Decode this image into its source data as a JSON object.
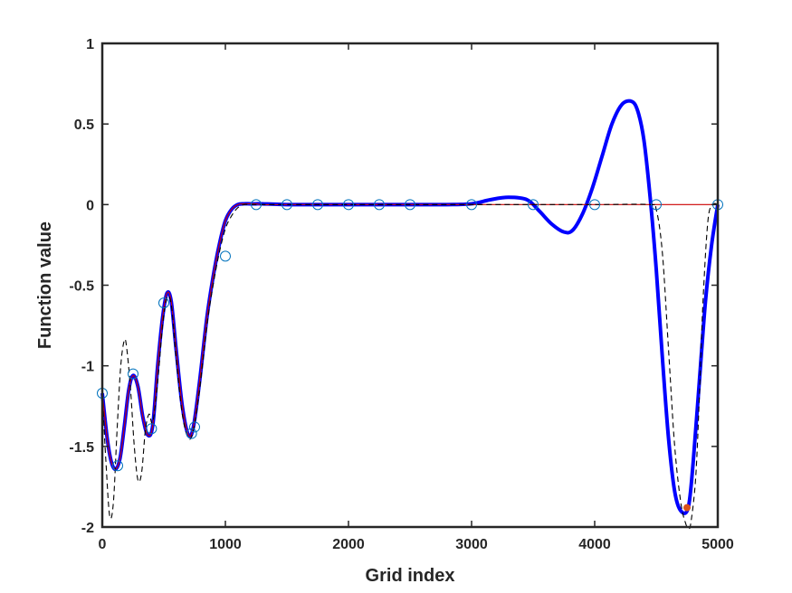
{
  "chart_data": {
    "type": "line",
    "title": "",
    "xlabel": "Grid index",
    "ylabel": "Function value",
    "xlim": [
      0,
      5000
    ],
    "ylim": [
      -2,
      1
    ],
    "xticks": [
      0,
      1000,
      2000,
      3000,
      4000,
      5000
    ],
    "xtick_labels": [
      "0",
      "1000",
      "2000",
      "3000",
      "4000",
      "5000"
    ],
    "yticks": [
      -2,
      -1.5,
      -1,
      -0.5,
      0,
      0.5,
      1
    ],
    "ytick_labels": [
      "-2",
      "-1.5",
      "-1",
      "-0.5",
      "0",
      "0.5",
      "1"
    ],
    "grid": false,
    "series": [
      {
        "style": "thick-solid",
        "color": "#0000ff",
        "x": [
          0,
          40,
          75,
          110,
          145,
          180,
          215,
          250,
          290,
          330,
          370,
          410,
          450,
          490,
          525,
          560,
          600,
          650,
          700,
          740,
          790,
          850,
          900,
          950,
          1000,
          1050,
          1100,
          1150,
          1200,
          1250,
          1300,
          1500,
          2000,
          2500,
          2800,
          3000,
          3150,
          3300,
          3450,
          3550,
          3650,
          3750,
          3820,
          3900,
          3980,
          4060,
          4140,
          4220,
          4300,
          4350,
          4400,
          4450,
          4500,
          4550,
          4600,
          4650,
          4700,
          4760,
          4800,
          4850,
          4900,
          4950,
          5000
        ],
        "y": [
          -1.17,
          -1.45,
          -1.6,
          -1.64,
          -1.57,
          -1.37,
          -1.15,
          -1.06,
          -1.13,
          -1.32,
          -1.43,
          -1.37,
          -1.0,
          -0.7,
          -0.55,
          -0.6,
          -0.9,
          -1.25,
          -1.43,
          -1.38,
          -1.1,
          -0.7,
          -0.45,
          -0.25,
          -0.1,
          -0.03,
          0.0,
          0.005,
          0.005,
          0.005,
          0.005,
          0.0,
          0.0,
          0.0,
          0.0,
          0.005,
          0.03,
          0.045,
          0.03,
          -0.04,
          -0.12,
          -0.17,
          -0.16,
          -0.06,
          0.1,
          0.3,
          0.5,
          0.62,
          0.64,
          0.58,
          0.4,
          0.05,
          -0.4,
          -0.95,
          -1.45,
          -1.78,
          -1.9,
          -1.88,
          -1.6,
          -1.1,
          -0.6,
          -0.25,
          0.0
        ]
      },
      {
        "style": "thin-solid",
        "color": "#cc0000",
        "x": [
          0,
          40,
          75,
          110,
          145,
          180,
          215,
          250,
          290,
          330,
          370,
          410,
          450,
          490,
          525,
          560,
          600,
          650,
          700,
          740,
          790,
          850,
          900,
          950,
          1000,
          1050,
          1100,
          1150,
          1200,
          1250,
          1300,
          1500,
          2000,
          2500,
          3000,
          3500,
          4000,
          4500,
          5000
        ],
        "y": [
          -1.17,
          -1.45,
          -1.6,
          -1.64,
          -1.57,
          -1.37,
          -1.15,
          -1.06,
          -1.13,
          -1.32,
          -1.43,
          -1.37,
          -1.0,
          -0.7,
          -0.55,
          -0.6,
          -0.9,
          -1.25,
          -1.43,
          -1.38,
          -1.1,
          -0.7,
          -0.45,
          -0.25,
          -0.1,
          -0.03,
          0.0,
          0.005,
          0.005,
          0.005,
          0.0,
          0.0,
          0.0,
          0.0,
          0.0,
          0.0,
          0.0,
          0.0,
          0.0
        ]
      },
      {
        "style": "thin-dashed",
        "color": "#000000",
        "x": [
          0,
          30,
          60,
          90,
          120,
          150,
          180,
          200,
          230,
          260,
          290,
          320,
          350,
          380,
          410,
          450,
          490,
          525,
          560,
          600,
          650,
          700,
          740,
          790,
          850,
          900,
          950,
          1000,
          1050,
          1100,
          1150,
          1200,
          1300,
          1500,
          2000,
          2500,
          3000,
          3500,
          4000,
          4450,
          4500,
          4550,
          4600,
          4650,
          4700,
          4740,
          4760,
          4780,
          4820,
          4850,
          4880,
          4920,
          4960,
          5000
        ],
        "y": [
          -1.17,
          -1.6,
          -1.93,
          -1.85,
          -1.4,
          -1.0,
          -0.84,
          -0.9,
          -1.15,
          -1.5,
          -1.71,
          -1.66,
          -1.4,
          -1.3,
          -1.35,
          -1.1,
          -0.75,
          -0.58,
          -0.62,
          -0.95,
          -1.3,
          -1.45,
          -1.4,
          -1.15,
          -0.75,
          -0.5,
          -0.3,
          -0.15,
          -0.07,
          -0.02,
          0.0,
          0.0,
          0.0,
          0.0,
          0.0,
          0.0,
          0.0,
          0.0,
          0.0,
          0.0,
          -0.03,
          -0.3,
          -0.9,
          -1.5,
          -1.85,
          -1.98,
          -2.0,
          -1.98,
          -1.7,
          -1.2,
          -0.6,
          -0.1,
          0.0,
          0.0
        ]
      }
    ],
    "markers": {
      "style": "open-circle",
      "color": "#0072bd",
      "x": [
        0,
        125,
        250,
        400,
        500,
        725,
        750,
        1000,
        1250,
        1500,
        1750,
        2000,
        2250,
        2500,
        3000,
        3500,
        4000,
        4500,
        5000
      ],
      "y": [
        -1.17,
        -1.62,
        -1.05,
        -1.39,
        -0.61,
        -1.42,
        -1.38,
        -0.32,
        0.0,
        0.0,
        0.0,
        0.0,
        0.0,
        0.0,
        0.0,
        0.0,
        0.0,
        0.0,
        0.0
      ]
    },
    "highlight_point": {
      "color": "#d95319",
      "x": 4750,
      "y": -1.88
    }
  }
}
